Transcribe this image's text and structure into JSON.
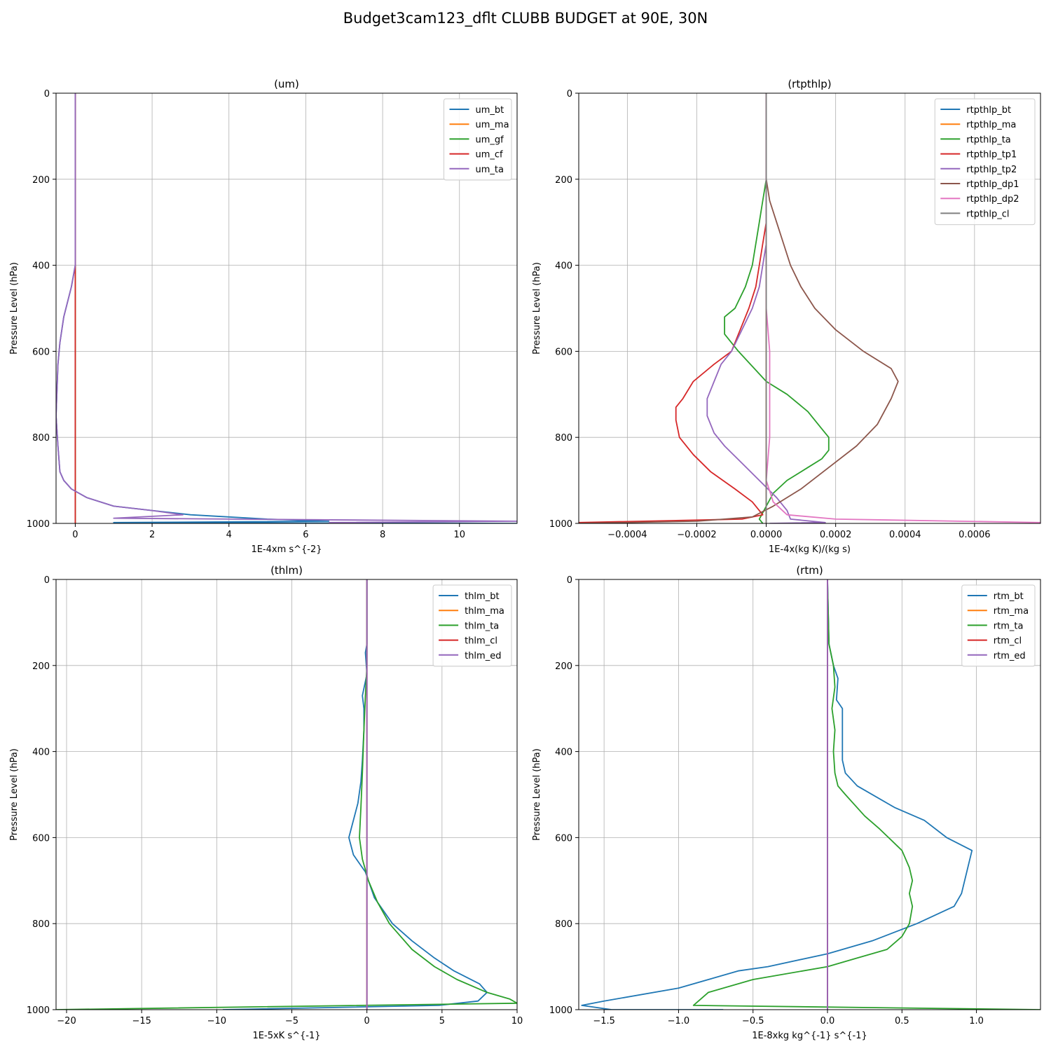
{
  "figure": {
    "title": "Budget3cam123_dflt CLUBB BUDGET at 90E, 30N"
  },
  "chart_data": [
    {
      "type": "line",
      "title": "(um)",
      "xlabel": "1E-4xm s^{-2}",
      "ylabel": "Pressure Level (hPa)",
      "xlim": [
        -0.5,
        11.5
      ],
      "ylim": [
        1000,
        0
      ],
      "xticks": [
        0,
        2,
        4,
        6,
        8,
        10
      ],
      "xtick_labels": [
        "0",
        "2",
        "4",
        "6",
        "8",
        "10"
      ],
      "yticks": [
        0,
        200,
        400,
        600,
        800,
        1000
      ],
      "ytick_labels": [
        "0",
        "200",
        "400",
        "600",
        "800",
        "1000"
      ],
      "grid": true,
      "legend_position": "top-right",
      "series": [
        {
          "name": "um_bt",
          "color": "#1f77b4",
          "x": [
            0,
            0,
            0,
            0,
            0,
            -0.1,
            -0.3,
            -0.4,
            -0.45,
            -0.5,
            -0.45,
            -0.4,
            -0.3,
            -0.1,
            0.3,
            1,
            2,
            3,
            4,
            5,
            6.6,
            1,
            11.5
          ],
          "y": [
            0,
            100,
            200,
            300,
            400,
            450,
            520,
            580,
            630,
            750,
            820,
            880,
            900,
            920,
            940,
            960,
            970,
            980,
            985,
            990,
            995,
            998,
            1000
          ]
        },
        {
          "name": "um_ma",
          "color": "#ff7f0e",
          "x": [
            0,
            0,
            0,
            0,
            0,
            0,
            0,
            0
          ],
          "y": [
            0,
            200,
            400,
            600,
            800,
            900,
            950,
            1000
          ]
        },
        {
          "name": "um_gf",
          "color": "#2ca02c",
          "x": [
            0,
            0,
            0,
            0,
            0,
            0,
            0,
            0
          ],
          "y": [
            0,
            200,
            400,
            600,
            800,
            900,
            950,
            1000
          ]
        },
        {
          "name": "um_cf",
          "color": "#d62728",
          "x": [
            0,
            0,
            0,
            0,
            0,
            0,
            0,
            0
          ],
          "y": [
            0,
            200,
            400,
            600,
            800,
            900,
            950,
            1000
          ]
        },
        {
          "name": "um_ta",
          "color": "#9467bd",
          "x": [
            0,
            0,
            0,
            0,
            0,
            -0.1,
            -0.3,
            -0.4,
            -0.45,
            -0.5,
            -0.45,
            -0.4,
            -0.3,
            -0.1,
            0.3,
            1,
            2,
            2.8,
            1,
            11.5,
            6.6
          ],
          "y": [
            0,
            100,
            200,
            300,
            400,
            450,
            520,
            580,
            630,
            750,
            820,
            880,
            900,
            920,
            940,
            960,
            970,
            980,
            988,
            995,
            998
          ]
        }
      ]
    },
    {
      "type": "line",
      "title": "(rtpthlp)",
      "xlabel": "1E-4x(kg K)/(kg s)",
      "ylabel": "Pressure Level (hPa)",
      "xlim": [
        -0.00054,
        0.00079
      ],
      "ylim": [
        1000,
        0
      ],
      "xticks": [
        -0.0004,
        -0.0002,
        0,
        0.0002,
        0.0004,
        0.0006
      ],
      "xtick_labels": [
        "−0.0004",
        "−0.0002",
        "0.0000",
        "0.0002",
        "0.0004",
        "0.0006"
      ],
      "yticks": [
        0,
        200,
        400,
        600,
        800,
        1000
      ],
      "ytick_labels": [
        "0",
        "200",
        "400",
        "600",
        "800",
        "1000"
      ],
      "grid": true,
      "legend_position": "top-right",
      "series": [
        {
          "name": "rtpthlp_bt",
          "color": "#1f77b4",
          "x": [
            0,
            0,
            0,
            0,
            0,
            0,
            0
          ],
          "y": [
            0,
            200,
            400,
            600,
            800,
            950,
            1000
          ]
        },
        {
          "name": "rtpthlp_ma",
          "color": "#ff7f0e",
          "x": [
            0,
            0,
            0,
            0,
            0,
            0,
            0
          ],
          "y": [
            0,
            200,
            400,
            600,
            800,
            950,
            1000
          ]
        },
        {
          "name": "rtpthlp_ta",
          "color": "#2ca02c",
          "x": [
            0,
            0,
            -1e-05,
            -2e-05,
            -3e-05,
            -4e-05,
            -6e-05,
            -9e-05,
            -0.00012,
            -0.00012,
            -8e-05,
            0,
            6e-05,
            0.00012,
            0.00016,
            0.00018,
            0.00018,
            0.00016,
            0.00012,
            6e-05,
            2e-05,
            0,
            -2e-05,
            -1e-05
          ],
          "y": [
            0,
            200,
            250,
            300,
            350,
            400,
            450,
            500,
            520,
            560,
            600,
            670,
            700,
            740,
            780,
            800,
            830,
            850,
            870,
            900,
            930,
            960,
            990,
            1000
          ]
        },
        {
          "name": "rtpthlp_tp1",
          "color": "#d62728",
          "x": [
            0,
            0,
            -1e-05,
            -2e-05,
            -3e-05,
            -5e-05,
            -0.0001,
            -0.00015,
            -0.00021,
            -0.00024,
            -0.00026,
            -0.00026,
            -0.00025,
            -0.00021,
            -0.00016,
            -9e-05,
            -4e-05,
            -1e-05,
            -7e-05,
            -0.00054
          ],
          "y": [
            0,
            300,
            350,
            400,
            450,
            500,
            600,
            630,
            670,
            710,
            730,
            760,
            800,
            840,
            880,
            920,
            950,
            980,
            990,
            998
          ]
        },
        {
          "name": "rtpthlp_tp2",
          "color": "#9467bd",
          "x": [
            0,
            0,
            -1e-05,
            -2e-05,
            -4e-05,
            -7e-05,
            -0.0001,
            -0.00013,
            -0.00015,
            -0.00017,
            -0.00017,
            -0.00015,
            -0.00012,
            -7e-05,
            -2e-05,
            3e-05,
            6e-05,
            7e-05,
            0.00017,
            1e-05
          ],
          "y": [
            0,
            350,
            400,
            450,
            500,
            550,
            600,
            630,
            670,
            710,
            750,
            790,
            820,
            860,
            900,
            940,
            970,
            990,
            998,
            1000
          ]
        },
        {
          "name": "rtpthlp_dp1",
          "color": "#8c564b",
          "x": [
            0,
            0,
            1e-05,
            3e-05,
            5e-05,
            7e-05,
            0.0001,
            0.00014,
            0.0002,
            0.00028,
            0.00036,
            0.00038,
            0.00036,
            0.00032,
            0.00026,
            0.00018,
            0.0001,
            2e-05,
            -4e-05,
            -0.0002,
            -0.00054
          ],
          "y": [
            0,
            200,
            250,
            300,
            350,
            400,
            450,
            500,
            550,
            600,
            640,
            670,
            710,
            770,
            820,
            870,
            920,
            960,
            985,
            995,
            1000
          ]
        },
        {
          "name": "rtpthlp_dp2",
          "color": "#e377c2",
          "x": [
            0,
            0,
            1e-05,
            1e-05,
            1e-05,
            0,
            2e-05,
            6e-05,
            0.0002,
            0.00079
          ],
          "y": [
            0,
            500,
            600,
            700,
            800,
            900,
            950,
            980,
            990,
            998
          ]
        },
        {
          "name": "rtpthlp_cl",
          "color": "#7f7f7f",
          "x": [
            0,
            0,
            0,
            0,
            0,
            0,
            0
          ],
          "y": [
            0,
            200,
            400,
            600,
            800,
            950,
            1000
          ]
        }
      ]
    },
    {
      "type": "line",
      "title": "(thlm)",
      "xlabel": "1E-5xK s^{-1}",
      "ylabel": "Pressure Level (hPa)",
      "xlim": [
        -20.7,
        10
      ],
      "ylim": [
        1000,
        0
      ],
      "xticks": [
        -20,
        -15,
        -10,
        -5,
        0,
        5,
        10
      ],
      "xtick_labels": [
        "−20",
        "−15",
        "−10",
        "−5",
        "0",
        "5",
        "10"
      ],
      "yticks": [
        0,
        200,
        400,
        600,
        800,
        1000
      ],
      "ytick_labels": [
        "0",
        "200",
        "400",
        "600",
        "800",
        "1000"
      ],
      "grid": true,
      "legend_position": "top-right",
      "series": [
        {
          "name": "thlm_bt",
          "color": "#1f77b4",
          "x": [
            0,
            0,
            -0.1,
            0,
            -0.3,
            -0.2,
            -0.2,
            -0.3,
            -0.4,
            -0.6,
            -1.2,
            -0.9,
            -0.1,
            0.5,
            1.7,
            3,
            4.5,
            5.8,
            7.5,
            8,
            7.4,
            4.8,
            -9.6
          ],
          "y": [
            0,
            150,
            170,
            220,
            270,
            300,
            350,
            420,
            470,
            520,
            600,
            640,
            680,
            740,
            800,
            840,
            880,
            910,
            940,
            960,
            980,
            990,
            1000
          ]
        },
        {
          "name": "thlm_ma",
          "color": "#ff7f0e",
          "x": [
            0,
            0,
            0,
            0,
            0,
            0,
            0,
            0
          ],
          "y": [
            0,
            200,
            400,
            600,
            800,
            900,
            950,
            1000
          ]
        },
        {
          "name": "thlm_ta",
          "color": "#2ca02c",
          "x": [
            0,
            0,
            -0.1,
            -0.2,
            -0.3,
            -0.4,
            -0.5,
            -0.3,
            0.1,
            0.7,
            1.5,
            3,
            4.5,
            6,
            8,
            9.5,
            10,
            -20.7
          ],
          "y": [
            0,
            200,
            270,
            350,
            450,
            530,
            600,
            650,
            700,
            750,
            800,
            860,
            900,
            930,
            960,
            975,
            985,
            1000
          ]
        },
        {
          "name": "thlm_cl",
          "color": "#d62728",
          "x": [
            0,
            0,
            0,
            0,
            0,
            0,
            0,
            0
          ],
          "y": [
            0,
            200,
            400,
            600,
            800,
            900,
            950,
            1000
          ]
        },
        {
          "name": "thlm_ed",
          "color": "#9467bd",
          "x": [
            0,
            0,
            0,
            0,
            0,
            0,
            0,
            0
          ],
          "y": [
            0,
            200,
            400,
            600,
            800,
            900,
            950,
            1000
          ]
        }
      ]
    },
    {
      "type": "line",
      "title": "(rtm)",
      "xlabel": "1E-8xkg kg^{-1} s^{-1}",
      "ylabel": "Pressure Level (hPa)",
      "xlim": [
        -1.67,
        1.43
      ],
      "ylim": [
        1000,
        0
      ],
      "xticks": [
        -1.5,
        -1.0,
        -0.5,
        0,
        0.5,
        1.0
      ],
      "xtick_labels": [
        "−1.5",
        "−1.0",
        "−0.5",
        "0.0",
        "0.5",
        "1.0"
      ],
      "yticks": [
        0,
        200,
        400,
        600,
        800,
        1000
      ],
      "ytick_labels": [
        "0",
        "200",
        "400",
        "600",
        "800",
        "1000"
      ],
      "grid": true,
      "legend_position": "top-right",
      "series": [
        {
          "name": "rtm_bt",
          "color": "#1f77b4",
          "x": [
            0,
            0.01,
            0.04,
            0.07,
            0.06,
            0.1,
            0.1,
            0.1,
            0.12,
            0.2,
            0.45,
            0.65,
            0.8,
            0.97,
            0.9,
            0.85,
            0.6,
            0.3,
            0,
            -0.4,
            -0.6,
            -1.0,
            -1.5,
            -1.65,
            -1.45,
            -0.7
          ],
          "y": [
            0,
            150,
            200,
            230,
            280,
            300,
            350,
            420,
            450,
            480,
            530,
            560,
            600,
            630,
            730,
            760,
            800,
            840,
            870,
            900,
            910,
            950,
            980,
            990,
            1000,
            1000
          ]
        },
        {
          "name": "rtm_ma",
          "color": "#ff7f0e",
          "x": [
            0,
            0,
            0,
            0,
            0,
            0,
            0,
            0
          ],
          "y": [
            0,
            200,
            400,
            600,
            800,
            900,
            950,
            1000
          ]
        },
        {
          "name": "rtm_ta",
          "color": "#2ca02c",
          "x": [
            0,
            0.01,
            0.04,
            0.05,
            0.03,
            0.05,
            0.04,
            0.05,
            0.07,
            0.12,
            0.25,
            0.35,
            0.5,
            0.55,
            0.57,
            0.55,
            0.57,
            0.55,
            0.5,
            0.4,
            0.2,
            0,
            -0.5,
            -0.8,
            -0.9,
            1.43
          ],
          "y": [
            0,
            150,
            200,
            250,
            300,
            350,
            400,
            450,
            480,
            500,
            550,
            580,
            630,
            670,
            700,
            730,
            760,
            800,
            830,
            860,
            880,
            900,
            930,
            960,
            990,
            1000
          ]
        },
        {
          "name": "rtm_cl",
          "color": "#d62728",
          "x": [
            0,
            0,
            0,
            0,
            0,
            0,
            0,
            0
          ],
          "y": [
            0,
            200,
            400,
            600,
            800,
            900,
            950,
            1000
          ]
        },
        {
          "name": "rtm_ed",
          "color": "#9467bd",
          "x": [
            0,
            0,
            0,
            0,
            0,
            0,
            0,
            0
          ],
          "y": [
            0,
            200,
            400,
            600,
            800,
            900,
            950,
            1000
          ]
        }
      ]
    }
  ]
}
